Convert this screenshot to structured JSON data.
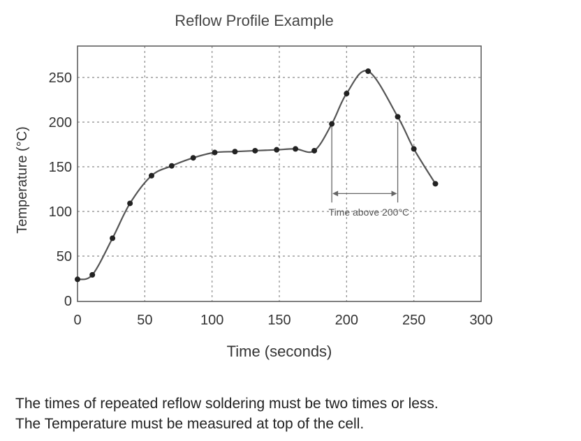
{
  "chart_data": {
    "type": "line",
    "title": "Reflow Profile Example",
    "xlabel": "Time (seconds)",
    "ylabel": "Temperature (°C)",
    "xlim": [
      0,
      300
    ],
    "ylim": [
      0,
      275
    ],
    "xticks": [
      0,
      50,
      100,
      150,
      200,
      250,
      300
    ],
    "yticks": [
      0,
      50,
      100,
      150,
      200,
      250
    ],
    "grid": true,
    "legend": "none",
    "line_color": "#555555",
    "series": [
      {
        "x": [
          0,
          11,
          26,
          39,
          55,
          70,
          86,
          102,
          117,
          132,
          148,
          162,
          176,
          189,
          200,
          216,
          238,
          250,
          266
        ],
        "y": [
          24,
          29,
          70,
          109,
          140,
          151,
          160,
          166,
          167,
          168,
          169,
          170,
          168,
          198,
          232,
          257,
          206,
          170,
          131
        ]
      }
    ],
    "annotations": [
      {
        "text": "Time above 200°C",
        "x_start": 189,
        "x_end": 238,
        "arrow_y": 120,
        "label_y": 100
      }
    ]
  },
  "notes": [
    "The times of repeated reflow soldering must be two times or less.",
    "The Temperature must be measured at top of the cell."
  ]
}
